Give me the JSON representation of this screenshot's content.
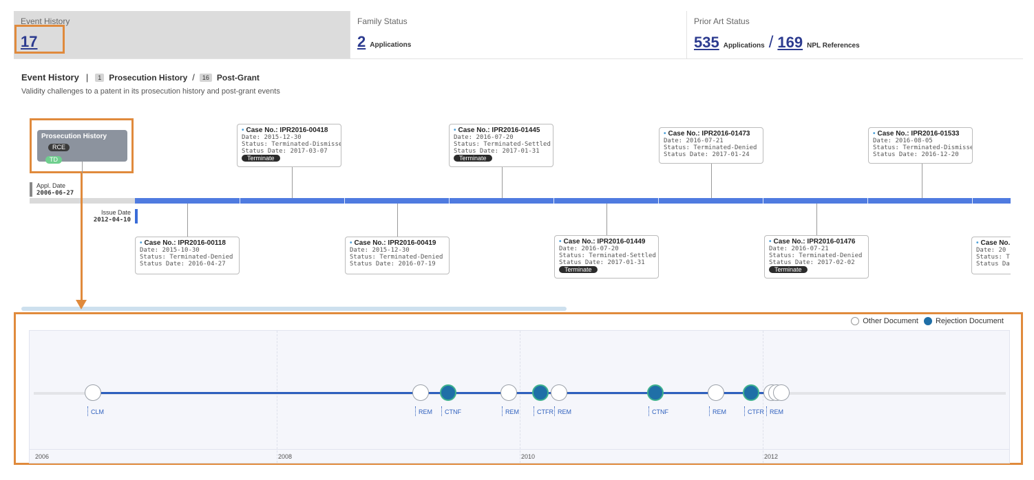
{
  "stats": [
    {
      "label": "Event History",
      "num": "17",
      "unit": ""
    },
    {
      "label": "Family Status",
      "num": "2",
      "unit": "Applications"
    },
    {
      "label": "Prior Art Status",
      "num": "535",
      "unit": "Applications",
      "num2": "169",
      "unit2": "NPL References"
    }
  ],
  "event_history": {
    "title": "Event History",
    "prosecution_count": "1",
    "prosecution_label": "Prosecution History",
    "postgrant_count": "16",
    "postgrant_label": "Post-Grant",
    "subtitle": "Validity challenges to a patent in its prosecution history and post-grant events"
  },
  "prosecution_card": {
    "title": "Prosecution History",
    "pill1": "RCE",
    "pill2": "TD"
  },
  "appl_date": {
    "label": "Appl. Date",
    "value": "2006-06-27"
  },
  "issue_date": {
    "label": "Issue Date",
    "value": "2012-04-10"
  },
  "cases_top": [
    {
      "case": "Case No.: IPR2016-00418",
      "date": "Date: 2015-12-30",
      "status": "Status: Terminated-Dismissed",
      "status_date": "Status Date: 2017-03-07",
      "tag": "Terminate"
    },
    {
      "case": "Case No.: IPR2016-01445",
      "date": "Date: 2016-07-20",
      "status": "Status: Terminated-Settled",
      "status_date": "Status Date: 2017-01-31",
      "tag": "Terminate"
    },
    {
      "case": "Case No.: IPR2016-01473",
      "date": "Date: 2016-07-21",
      "status": "Status: Terminated-Denied",
      "status_date": "Status Date: 2017-01-24",
      "tag": ""
    },
    {
      "case": "Case No.: IPR2016-01533",
      "date": "Date: 2016-08-05",
      "status": "Status: Terminated-Dismissed",
      "status_date": "Status Date: 2016-12-20",
      "tag": ""
    }
  ],
  "cases_bottom": [
    {
      "case": "Case No.: IPR2016-00118",
      "date": "Date: 2015-10-30",
      "status": "Status: Terminated-Denied",
      "status_date": "Status Date: 2016-04-27",
      "tag": ""
    },
    {
      "case": "Case No.: IPR2016-00419",
      "date": "Date: 2015-12-30",
      "status": "Status: Terminated-Denied",
      "status_date": "Status Date: 2016-07-19",
      "tag": ""
    },
    {
      "case": "Case No.: IPR2016-01449",
      "date": "Date: 2016-07-20",
      "status": "Status: Terminated-Settled",
      "status_date": "Status Date: 2017-01-31",
      "tag": "Terminate"
    },
    {
      "case": "Case No.: IPR2016-01476",
      "date": "Date: 2016-07-21",
      "status": "Status: Terminated-Denied",
      "status_date": "Status Date: 2017-02-02",
      "tag": "Terminate"
    },
    {
      "case": "Case No.",
      "date": "Date: 20",
      "status": "Status: T",
      "status_date": "Status Da",
      "tag": ""
    }
  ],
  "legend": {
    "other": "Other Document",
    "rejection": "Rejection Document"
  },
  "doc_labels": [
    "CLM",
    "REM",
    "CTNF",
    "REM",
    "CTFR",
    "REM",
    "CTNF",
    "REM",
    "CTFR",
    "REM"
  ],
  "years": [
    "2006",
    "2008",
    "2010",
    "2012"
  ],
  "colors": {
    "accent": "#2c3b8f",
    "timeline_blue": "#4f7be0",
    "highlight": "#e08a3c",
    "rejection": "#1f6fa7"
  }
}
